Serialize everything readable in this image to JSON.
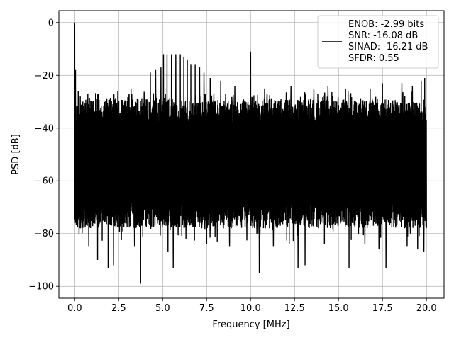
{
  "chart_data": {
    "type": "line",
    "title": "",
    "xlabel": "Frequency [MHz]",
    "ylabel": "PSD [dB]",
    "xlim": [
      -0.9,
      21.0
    ],
    "ylim": [
      -104.5,
      4.5
    ],
    "x_ticks": [
      0.0,
      2.5,
      5.0,
      7.5,
      10.0,
      12.5,
      15.0,
      17.5,
      20.0
    ],
    "x_tick_labels": [
      "0.0",
      "2.5",
      "5.0",
      "7.5",
      "10.0",
      "12.5",
      "15.0",
      "17.5",
      "20.0"
    ],
    "y_ticks": [
      0,
      -20,
      -40,
      -60,
      -80,
      -100
    ],
    "y_tick_labels": [
      "0",
      "−20",
      "−40",
      "−60",
      "−80",
      "−100"
    ],
    "grid": true,
    "legend_position": "top-right",
    "line_color": "#000000",
    "series": [
      {
        "name": "ENOB: -2.99 bits\nSNR: -16.08 dB\nSINAD: -16.21 dB\nSFDR: 0.55",
        "x_range": [
          0.0,
          20.0
        ],
        "noise_floor_upper_db": -30,
        "noise_floor_lower_db": -75,
        "peaks": [
          {
            "x": 0.0,
            "y": 0.0
          },
          {
            "x": 0.05,
            "y": -18
          },
          {
            "x": 0.2,
            "y": -26
          },
          {
            "x": 0.75,
            "y": -27
          },
          {
            "x": 1.35,
            "y": -27
          },
          {
            "x": 2.45,
            "y": -26
          },
          {
            "x": 3.2,
            "y": -25
          },
          {
            "x": 4.3,
            "y": -19
          },
          {
            "x": 4.6,
            "y": -18
          },
          {
            "x": 4.9,
            "y": -17
          },
          {
            "x": 5.05,
            "y": -12
          },
          {
            "x": 5.25,
            "y": -12
          },
          {
            "x": 5.5,
            "y": -12
          },
          {
            "x": 5.75,
            "y": -12
          },
          {
            "x": 6.0,
            "y": -12
          },
          {
            "x": 6.2,
            "y": -13
          },
          {
            "x": 6.4,
            "y": -14
          },
          {
            "x": 6.6,
            "y": -16
          },
          {
            "x": 6.85,
            "y": -16
          },
          {
            "x": 7.1,
            "y": -17
          },
          {
            "x": 7.35,
            "y": -19
          },
          {
            "x": 7.7,
            "y": -21
          },
          {
            "x": 8.3,
            "y": -22
          },
          {
            "x": 9.1,
            "y": -24
          },
          {
            "x": 10.0,
            "y": -11
          },
          {
            "x": 10.8,
            "y": -25
          },
          {
            "x": 12.3,
            "y": -24
          },
          {
            "x": 13.6,
            "y": -25
          },
          {
            "x": 14.4,
            "y": -24
          },
          {
            "x": 15.4,
            "y": -25
          },
          {
            "x": 16.8,
            "y": -25
          },
          {
            "x": 17.5,
            "y": -23
          },
          {
            "x": 18.6,
            "y": -23
          },
          {
            "x": 19.2,
            "y": -24
          },
          {
            "x": 19.7,
            "y": -22
          },
          {
            "x": 19.9,
            "y": -21
          }
        ],
        "dips": [
          {
            "x": 0.25,
            "y": -80
          },
          {
            "x": 0.8,
            "y": -85
          },
          {
            "x": 1.3,
            "y": -90
          },
          {
            "x": 1.9,
            "y": -93
          },
          {
            "x": 2.2,
            "y": -92
          },
          {
            "x": 3.4,
            "y": -85
          },
          {
            "x": 3.75,
            "y": -99
          },
          {
            "x": 5.3,
            "y": -87
          },
          {
            "x": 5.6,
            "y": -93
          },
          {
            "x": 6.2,
            "y": -88
          },
          {
            "x": 7.5,
            "y": -84
          },
          {
            "x": 8.1,
            "y": -83
          },
          {
            "x": 8.8,
            "y": -85
          },
          {
            "x": 10.5,
            "y": -95
          },
          {
            "x": 11.3,
            "y": -85
          },
          {
            "x": 12.2,
            "y": -84
          },
          {
            "x": 12.7,
            "y": -93
          },
          {
            "x": 13.1,
            "y": -92
          },
          {
            "x": 14.2,
            "y": -84
          },
          {
            "x": 15.6,
            "y": -93
          },
          {
            "x": 16.5,
            "y": -84
          },
          {
            "x": 17.3,
            "y": -86
          },
          {
            "x": 17.7,
            "y": -93
          },
          {
            "x": 18.9,
            "y": -85
          },
          {
            "x": 19.5,
            "y": -86
          },
          {
            "x": 19.85,
            "y": -87
          }
        ]
      }
    ]
  }
}
